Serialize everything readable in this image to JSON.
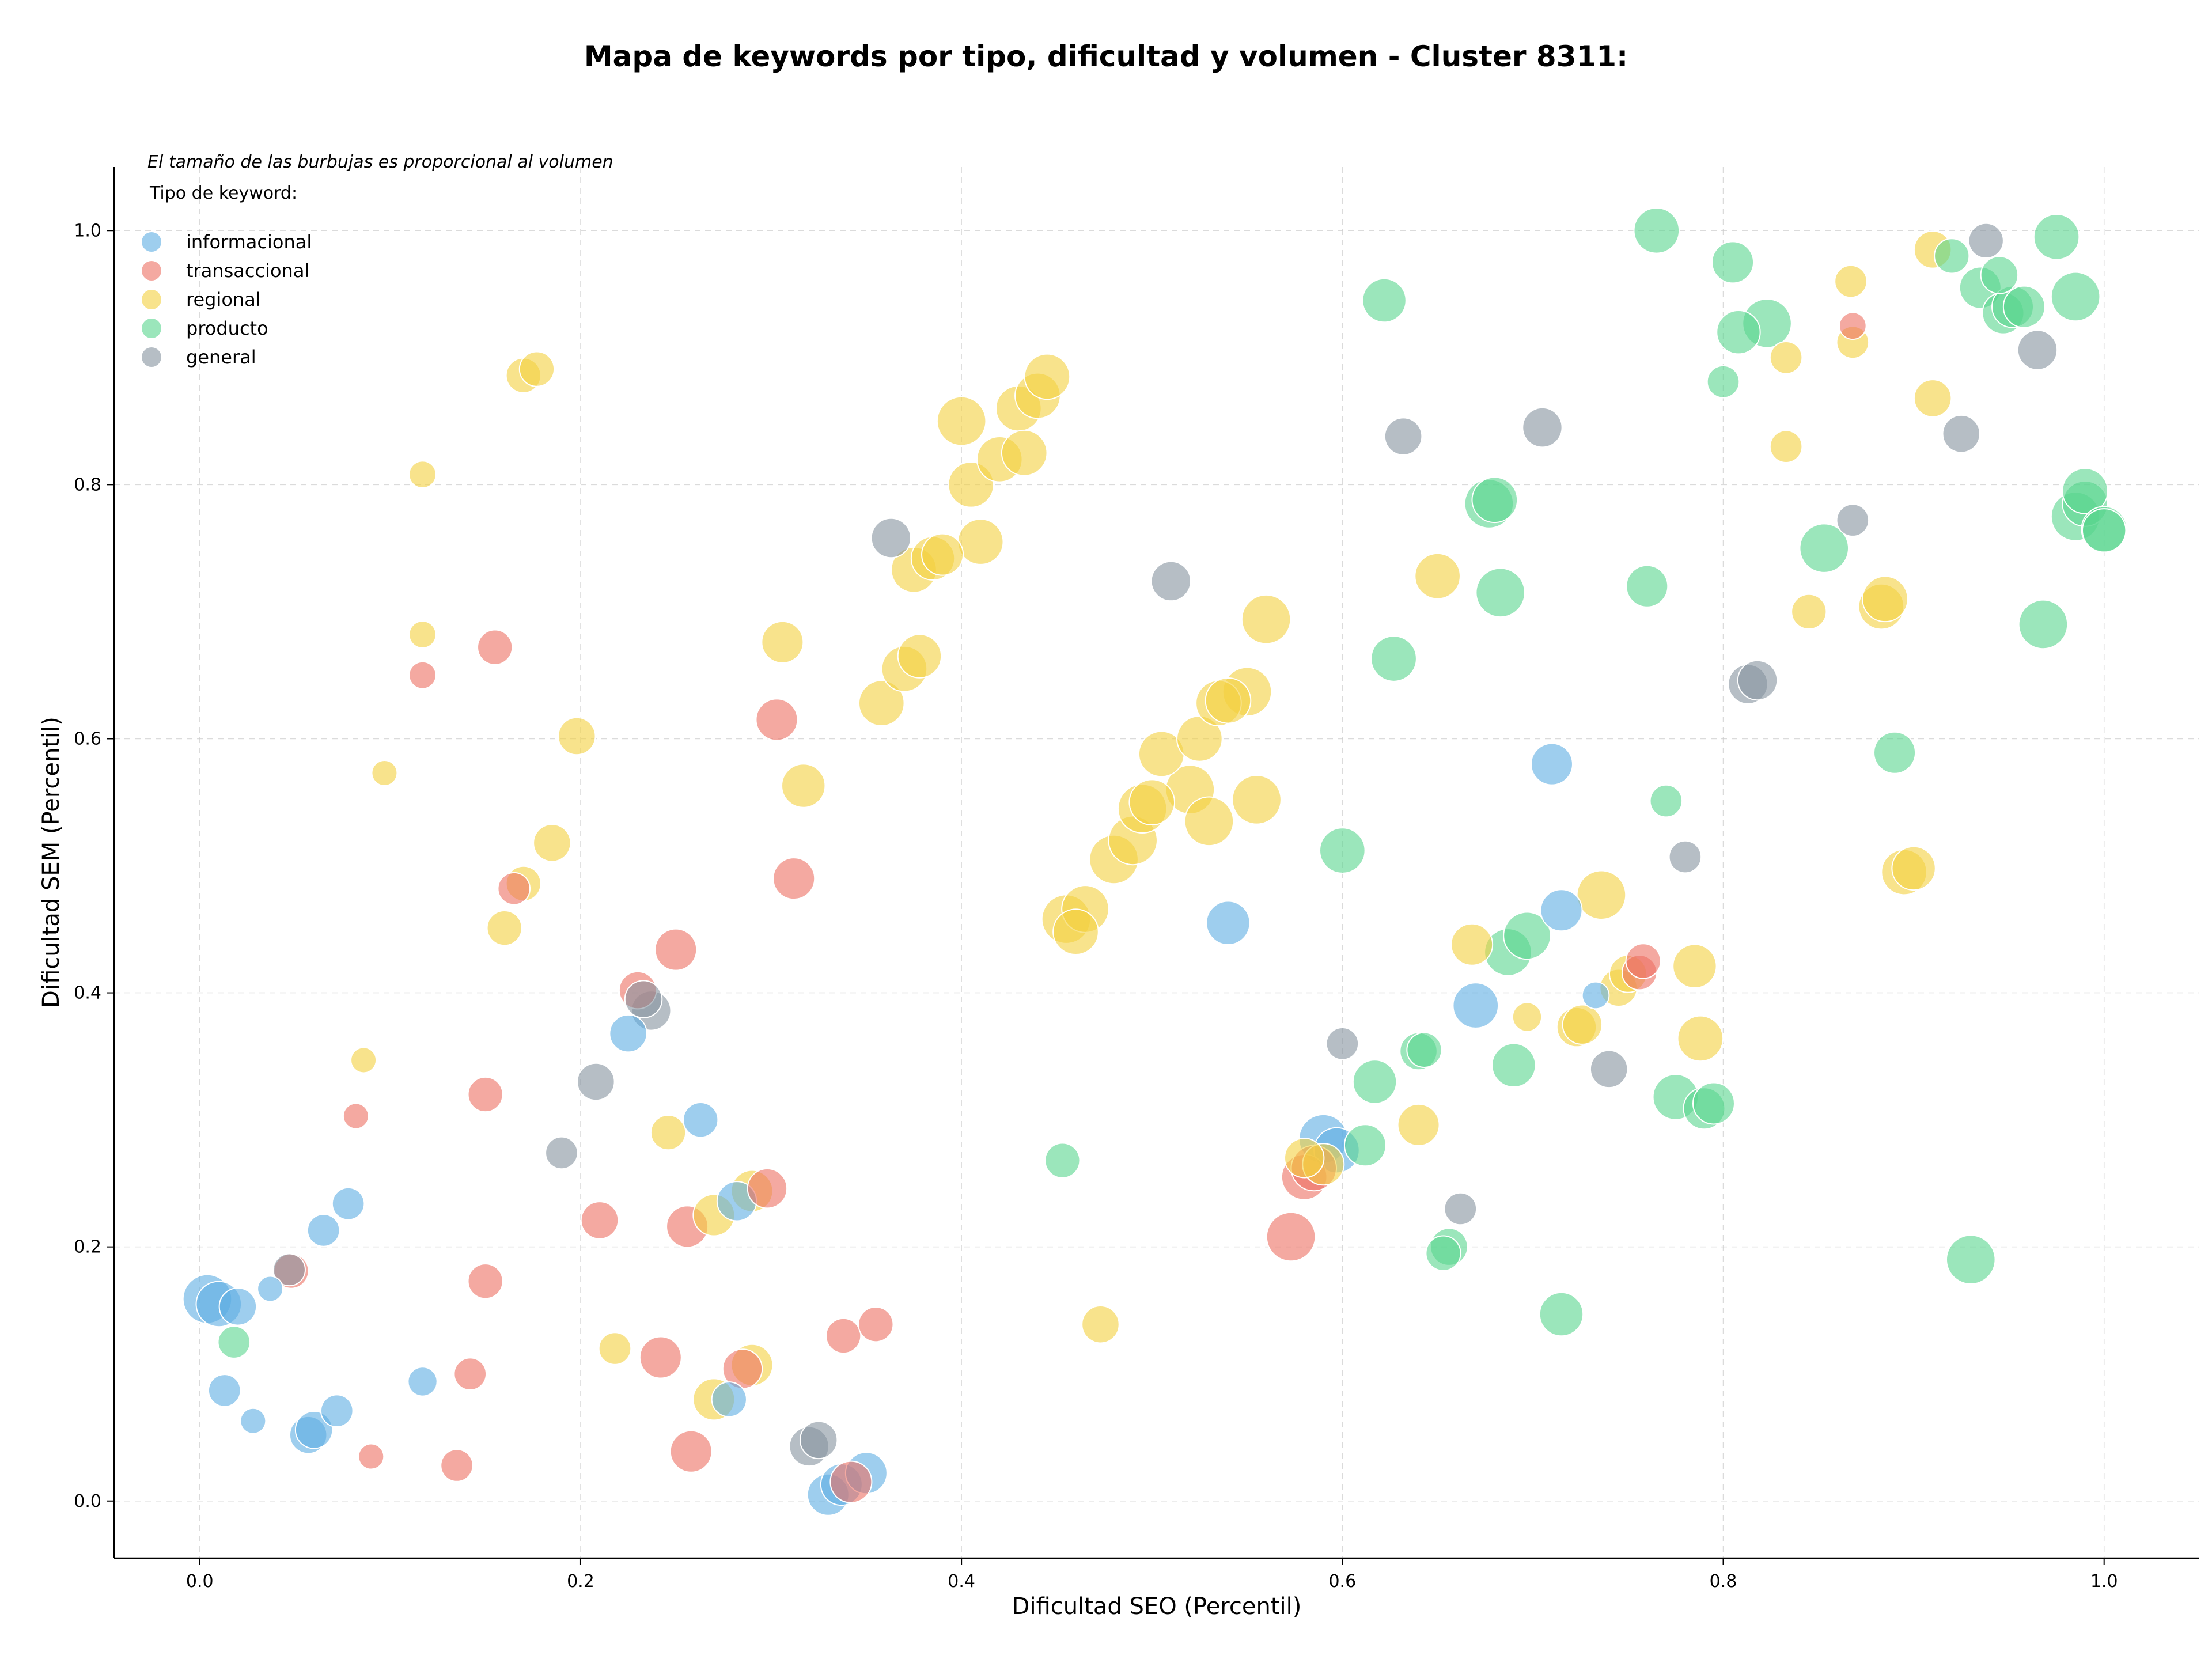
{
  "chart_data": {
    "type": "scatter",
    "title": "Mapa de keywords por tipo, dificultad y volumen - Cluster 8311:",
    "xlabel": "Dificultad SEO (Percentil)",
    "ylabel": "Dificultad SEM (Percentil)",
    "xlim": [
      -0.045,
      1.05
    ],
    "ylim": [
      -0.045,
      1.05
    ],
    "xticks": [
      0.0,
      0.2,
      0.4,
      0.6,
      0.8,
      1.0
    ],
    "yticks": [
      0.0,
      0.2,
      0.4,
      0.6,
      0.8,
      1.0
    ],
    "tick_format": "0.1f",
    "grid": true,
    "legend_position": "top-left",
    "annotation": "El tamaño de las burbujas es proporcional al volumen",
    "legend_title": "Tipo de keyword:",
    "series": [
      {
        "name": "informacional",
        "color": "#5DADE2",
        "points": [
          [
            0.004,
            0.159,
            6
          ],
          [
            0.01,
            0.155,
            5
          ],
          [
            0.02,
            0.153,
            3
          ],
          [
            0.013,
            0.087,
            2
          ],
          [
            0.028,
            0.063,
            1
          ],
          [
            0.037,
            0.167,
            1
          ],
          [
            0.065,
            0.213,
            2
          ],
          [
            0.078,
            0.234,
            2
          ],
          [
            0.057,
            0.052,
            3
          ],
          [
            0.06,
            0.056,
            3
          ],
          [
            0.072,
            0.071,
            2
          ],
          [
            0.117,
            0.094,
            1.5
          ],
          [
            0.225,
            0.368,
            3
          ],
          [
            0.263,
            0.3,
            2.5
          ],
          [
            0.282,
            0.236,
            3.5
          ],
          [
            0.278,
            0.08,
            2.5
          ],
          [
            0.33,
            0.005,
            4
          ],
          [
            0.337,
            0.013,
            4
          ],
          [
            0.35,
            0.022,
            4
          ],
          [
            0.54,
            0.455,
            4.5
          ],
          [
            0.59,
            0.285,
            6
          ],
          [
            0.597,
            0.276,
            5
          ],
          [
            0.67,
            0.39,
            5
          ],
          [
            0.715,
            0.465,
            4
          ],
          [
            0.71,
            0.58,
            4
          ],
          [
            0.733,
            0.398,
            1.2
          ]
        ]
      },
      {
        "name": "transaccional",
        "color": "#EC7063",
        "points": [
          [
            0.048,
            0.181,
            2.5
          ],
          [
            0.082,
            0.303,
            1
          ],
          [
            0.09,
            0.035,
            1
          ],
          [
            0.117,
            0.65,
            1.2
          ],
          [
            0.135,
            0.028,
            2
          ],
          [
            0.142,
            0.1,
            2
          ],
          [
            0.15,
            0.32,
            2.5
          ],
          [
            0.15,
            0.173,
            2.5
          ],
          [
            0.155,
            0.672,
            2.5
          ],
          [
            0.165,
            0.482,
            2
          ],
          [
            0.21,
            0.221,
            3
          ],
          [
            0.23,
            0.402,
            3
          ],
          [
            0.242,
            0.113,
            4
          ],
          [
            0.25,
            0.434,
            4
          ],
          [
            0.256,
            0.216,
            4
          ],
          [
            0.258,
            0.039,
            4
          ],
          [
            0.285,
            0.104,
            3.5
          ],
          [
            0.298,
            0.246,
            3.5
          ],
          [
            0.303,
            0.615,
            4
          ],
          [
            0.312,
            0.49,
            4
          ],
          [
            0.338,
            0.13,
            2.5
          ],
          [
            0.342,
            0.015,
            4
          ],
          [
            0.355,
            0.139,
            2.5
          ],
          [
            0.573,
            0.208,
            6
          ],
          [
            0.58,
            0.255,
            5
          ],
          [
            0.585,
            0.262,
            5
          ],
          [
            0.756,
            0.416,
            2.5
          ],
          [
            0.758,
            0.425,
            2.5
          ],
          [
            0.868,
            0.925,
            1.2
          ]
        ]
      },
      {
        "name": "regional",
        "color": "#F4D03F",
        "points": [
          [
            0.086,
            0.347,
            1
          ],
          [
            0.097,
            0.573,
            1
          ],
          [
            0.117,
            0.808,
            1.2
          ],
          [
            0.117,
            0.682,
            1.2
          ],
          [
            0.16,
            0.451,
            2.5
          ],
          [
            0.17,
            0.886,
            2.5
          ],
          [
            0.177,
            0.891,
            2.5
          ],
          [
            0.17,
            0.486,
            2.5
          ],
          [
            0.185,
            0.518,
            3
          ],
          [
            0.198,
            0.602,
            3
          ],
          [
            0.218,
            0.12,
            2
          ],
          [
            0.246,
            0.29,
            2.5
          ],
          [
            0.27,
            0.08,
            4
          ],
          [
            0.27,
            0.225,
            4
          ],
          [
            0.29,
            0.244,
            4
          ],
          [
            0.29,
            0.107,
            4
          ],
          [
            0.306,
            0.676,
            4
          ],
          [
            0.317,
            0.563,
            4.5
          ],
          [
            0.358,
            0.628,
            5
          ],
          [
            0.37,
            0.655,
            5
          ],
          [
            0.378,
            0.665,
            4.5
          ],
          [
            0.375,
            0.733,
            5
          ],
          [
            0.385,
            0.742,
            4.5
          ],
          [
            0.39,
            0.745,
            4
          ],
          [
            0.4,
            0.85,
            6
          ],
          [
            0.405,
            0.8,
            5
          ],
          [
            0.41,
            0.755,
            5
          ],
          [
            0.42,
            0.82,
            5
          ],
          [
            0.43,
            0.86,
            5
          ],
          [
            0.44,
            0.87,
            5
          ],
          [
            0.445,
            0.885,
            5
          ],
          [
            0.433,
            0.825,
            5
          ],
          [
            0.455,
            0.458,
            6
          ],
          [
            0.46,
            0.448,
            5
          ],
          [
            0.465,
            0.466,
            5.5
          ],
          [
            0.473,
            0.139,
            3
          ],
          [
            0.48,
            0.505,
            6
          ],
          [
            0.49,
            0.52,
            6
          ],
          [
            0.495,
            0.545,
            6
          ],
          [
            0.5,
            0.55,
            5
          ],
          [
            0.505,
            0.588,
            5
          ],
          [
            0.52,
            0.56,
            6
          ],
          [
            0.525,
            0.6,
            5
          ],
          [
            0.53,
            0.535,
            6
          ],
          [
            0.535,
            0.628,
            5
          ],
          [
            0.54,
            0.63,
            5
          ],
          [
            0.55,
            0.637,
            6
          ],
          [
            0.555,
            0.552,
            6
          ],
          [
            0.56,
            0.694,
            6
          ],
          [
            0.58,
            0.27,
            3.5
          ],
          [
            0.59,
            0.265,
            4
          ],
          [
            0.64,
            0.296,
            4
          ],
          [
            0.65,
            0.728,
            5
          ],
          [
            0.668,
            0.438,
            4
          ],
          [
            0.697,
            0.381,
            1.5
          ],
          [
            0.723,
            0.373,
            3.5
          ],
          [
            0.726,
            0.375,
            3.5
          ],
          [
            0.736,
            0.477,
            6
          ],
          [
            0.745,
            0.404,
            3
          ],
          [
            0.75,
            0.415,
            3
          ],
          [
            0.785,
            0.421,
            4.5
          ],
          [
            0.788,
            0.364,
            5
          ],
          [
            0.833,
            0.9,
            2
          ],
          [
            0.833,
            0.83,
            2
          ],
          [
            0.845,
            0.7,
            2.5
          ],
          [
            0.867,
            0.96,
            2
          ],
          [
            0.868,
            0.912,
            2
          ],
          [
            0.883,
            0.704,
            5
          ],
          [
            0.885,
            0.71,
            5
          ],
          [
            0.895,
            0.495,
            5
          ],
          [
            0.9,
            0.498,
            4.5
          ],
          [
            0.91,
            0.985,
            3
          ],
          [
            0.91,
            0.868,
            3
          ]
        ]
      },
      {
        "name": "producto",
        "color": "#58D68D",
        "points": [
          [
            0.018,
            0.125,
            2
          ],
          [
            0.453,
            0.268,
            2.5
          ],
          [
            0.6,
            0.512,
            5
          ],
          [
            0.612,
            0.28,
            4
          ],
          [
            0.617,
            0.33,
            4.5
          ],
          [
            0.622,
            0.945,
            4.5
          ],
          [
            0.627,
            0.663,
            5
          ],
          [
            0.64,
            0.354,
            3
          ],
          [
            0.643,
            0.355,
            2.5
          ],
          [
            0.653,
            0.195,
            2.5
          ],
          [
            0.656,
            0.2,
            3
          ],
          [
            0.677,
            0.785,
            6
          ],
          [
            0.68,
            0.788,
            5
          ],
          [
            0.683,
            0.715,
            6
          ],
          [
            0.687,
            0.432,
            5.5
          ],
          [
            0.69,
            0.343,
            4.5
          ],
          [
            0.697,
            0.445,
            5.5
          ],
          [
            0.715,
            0.147,
            4.5
          ],
          [
            0.76,
            0.72,
            4
          ],
          [
            0.765,
            1.0,
            5
          ],
          [
            0.77,
            0.551,
            2
          ],
          [
            0.775,
            0.318,
            5
          ],
          [
            0.79,
            0.309,
            4
          ],
          [
            0.795,
            0.313,
            4
          ],
          [
            0.8,
            0.881,
            2
          ],
          [
            0.805,
            0.975,
            4
          ],
          [
            0.808,
            0.92,
            4.5
          ],
          [
            0.823,
            0.927,
            6
          ],
          [
            0.853,
            0.75,
            6
          ],
          [
            0.89,
            0.589,
            4
          ],
          [
            0.93,
            0.19,
            6
          ],
          [
            0.92,
            0.98,
            2.5
          ],
          [
            0.935,
            0.955,
            4
          ],
          [
            0.945,
            0.965,
            3
          ],
          [
            0.947,
            0.935,
            4
          ],
          [
            0.952,
            0.94,
            4
          ],
          [
            0.958,
            0.94,
            4
          ],
          [
            0.968,
            0.69,
            6
          ],
          [
            0.975,
            0.995,
            5
          ],
          [
            0.985,
            0.948,
            6
          ],
          [
            0.985,
            0.775,
            6
          ],
          [
            0.99,
            0.785,
            5
          ],
          [
            0.99,
            0.795,
            5
          ],
          [
            1.0,
            0.765,
            5
          ],
          [
            1.0,
            0.764,
            4.5
          ]
        ]
      },
      {
        "name": "general",
        "color": "#85929E",
        "points": [
          [
            0.047,
            0.182,
            2
          ],
          [
            0.19,
            0.274,
            2
          ],
          [
            0.208,
            0.33,
            3
          ],
          [
            0.233,
            0.395,
            3
          ],
          [
            0.237,
            0.386,
            3.5
          ],
          [
            0.32,
            0.043,
            3.5
          ],
          [
            0.325,
            0.048,
            3
          ],
          [
            0.363,
            0.758,
            3.5
          ],
          [
            0.51,
            0.724,
            3.5
          ],
          [
            0.6,
            0.36,
            2
          ],
          [
            0.632,
            0.838,
            3
          ],
          [
            0.662,
            0.23,
            2
          ],
          [
            0.705,
            0.845,
            3.5
          ],
          [
            0.74,
            0.34,
            3
          ],
          [
            0.78,
            0.507,
            2
          ],
          [
            0.813,
            0.643,
            3.5
          ],
          [
            0.818,
            0.646,
            3.5
          ],
          [
            0.868,
            0.772,
            2
          ],
          [
            0.925,
            0.84,
            3
          ],
          [
            0.938,
            0.992,
            2.5
          ],
          [
            0.965,
            0.906,
            3.5
          ]
        ]
      }
    ]
  }
}
